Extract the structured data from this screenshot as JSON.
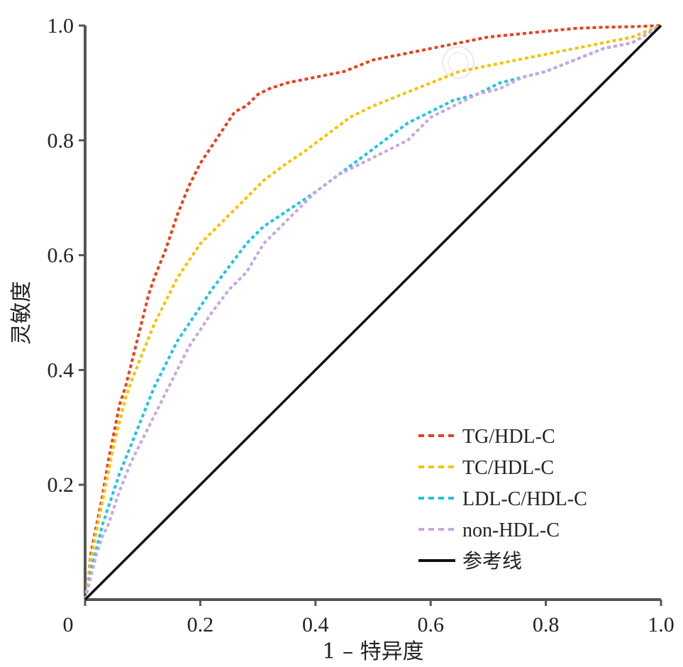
{
  "chart_data": {
    "type": "line",
    "title": "",
    "xlabel": "1 – 特异度",
    "ylabel": "灵敏度",
    "xlim": [
      0,
      1
    ],
    "ylim": [
      0,
      1
    ],
    "x_ticks": [
      "0",
      "0.2",
      "0.4",
      "0.6",
      "0.8",
      "1.0"
    ],
    "y_ticks": [
      "0.2",
      "0.4",
      "0.6",
      "0.8",
      "1.0"
    ],
    "grid": false,
    "legend_position": "bottom-right",
    "series": [
      {
        "name": "TG/HDL-C",
        "color": "#e8401c",
        "style": "dashed",
        "x": [
          0,
          0.005,
          0.01,
          0.02,
          0.03,
          0.04,
          0.05,
          0.06,
          0.07,
          0.08,
          0.09,
          0.1,
          0.11,
          0.12,
          0.14,
          0.16,
          0.18,
          0.2,
          0.22,
          0.24,
          0.26,
          0.28,
          0.3,
          0.32,
          0.35,
          0.4,
          0.45,
          0.5,
          0.55,
          0.6,
          0.65,
          0.7,
          0.75,
          0.8,
          0.85,
          0.9,
          0.95,
          1.0
        ],
        "y": [
          0,
          0.03,
          0.08,
          0.13,
          0.18,
          0.24,
          0.29,
          0.34,
          0.37,
          0.41,
          0.45,
          0.49,
          0.53,
          0.56,
          0.61,
          0.67,
          0.72,
          0.76,
          0.79,
          0.82,
          0.85,
          0.86,
          0.88,
          0.89,
          0.9,
          0.91,
          0.92,
          0.94,
          0.95,
          0.96,
          0.97,
          0.98,
          0.985,
          0.99,
          0.995,
          0.997,
          0.998,
          1.0
        ]
      },
      {
        "name": "TC/HDL-C",
        "color": "#f2c500",
        "style": "dashed",
        "x": [
          0,
          0.005,
          0.01,
          0.02,
          0.03,
          0.04,
          0.05,
          0.06,
          0.07,
          0.08,
          0.1,
          0.12,
          0.14,
          0.16,
          0.18,
          0.2,
          0.22,
          0.25,
          0.28,
          0.31,
          0.35,
          0.38,
          0.42,
          0.46,
          0.5,
          0.55,
          0.6,
          0.65,
          0.7,
          0.75,
          0.8,
          0.85,
          0.9,
          0.95,
          1.0
        ],
        "y": [
          0,
          0.03,
          0.07,
          0.12,
          0.17,
          0.22,
          0.27,
          0.31,
          0.35,
          0.38,
          0.43,
          0.48,
          0.52,
          0.56,
          0.59,
          0.62,
          0.64,
          0.67,
          0.7,
          0.73,
          0.76,
          0.78,
          0.81,
          0.84,
          0.86,
          0.88,
          0.9,
          0.92,
          0.93,
          0.94,
          0.95,
          0.96,
          0.97,
          0.98,
          1.0
        ]
      },
      {
        "name": "LDL-C/HDL-C",
        "color": "#1fc4e4",
        "style": "dashed",
        "x": [
          0,
          0.005,
          0.01,
          0.02,
          0.03,
          0.04,
          0.05,
          0.06,
          0.08,
          0.1,
          0.12,
          0.14,
          0.16,
          0.18,
          0.2,
          0.22,
          0.25,
          0.28,
          0.31,
          0.34,
          0.37,
          0.4,
          0.44,
          0.48,
          0.52,
          0.56,
          0.6,
          0.64,
          0.68,
          0.72,
          0.76,
          0.8,
          0.85,
          0.9,
          0.95,
          1.0
        ],
        "y": [
          0,
          0.02,
          0.05,
          0.09,
          0.13,
          0.16,
          0.19,
          0.22,
          0.27,
          0.32,
          0.37,
          0.41,
          0.45,
          0.48,
          0.51,
          0.54,
          0.58,
          0.62,
          0.65,
          0.67,
          0.69,
          0.71,
          0.74,
          0.77,
          0.8,
          0.83,
          0.85,
          0.87,
          0.88,
          0.9,
          0.91,
          0.92,
          0.94,
          0.96,
          0.97,
          1.0
        ]
      },
      {
        "name": "non-HDL-C",
        "color": "#c9a6dd",
        "style": "dashed",
        "x": [
          0,
          0.005,
          0.01,
          0.02,
          0.03,
          0.04,
          0.05,
          0.06,
          0.08,
          0.1,
          0.12,
          0.14,
          0.16,
          0.18,
          0.2,
          0.22,
          0.25,
          0.28,
          0.31,
          0.34,
          0.37,
          0.4,
          0.44,
          0.48,
          0.52,
          0.56,
          0.6,
          0.64,
          0.68,
          0.72,
          0.76,
          0.8,
          0.85,
          0.9,
          0.95,
          1.0
        ],
        "y": [
          0,
          0.02,
          0.04,
          0.08,
          0.11,
          0.13,
          0.16,
          0.19,
          0.24,
          0.28,
          0.32,
          0.36,
          0.4,
          0.44,
          0.47,
          0.5,
          0.54,
          0.57,
          0.62,
          0.65,
          0.68,
          0.71,
          0.74,
          0.76,
          0.78,
          0.8,
          0.84,
          0.86,
          0.88,
          0.89,
          0.91,
          0.92,
          0.94,
          0.96,
          0.97,
          1.0
        ]
      },
      {
        "name": "参考线",
        "color": "#111111",
        "style": "solid",
        "x": [
          0,
          1
        ],
        "y": [
          0,
          1
        ]
      }
    ]
  }
}
